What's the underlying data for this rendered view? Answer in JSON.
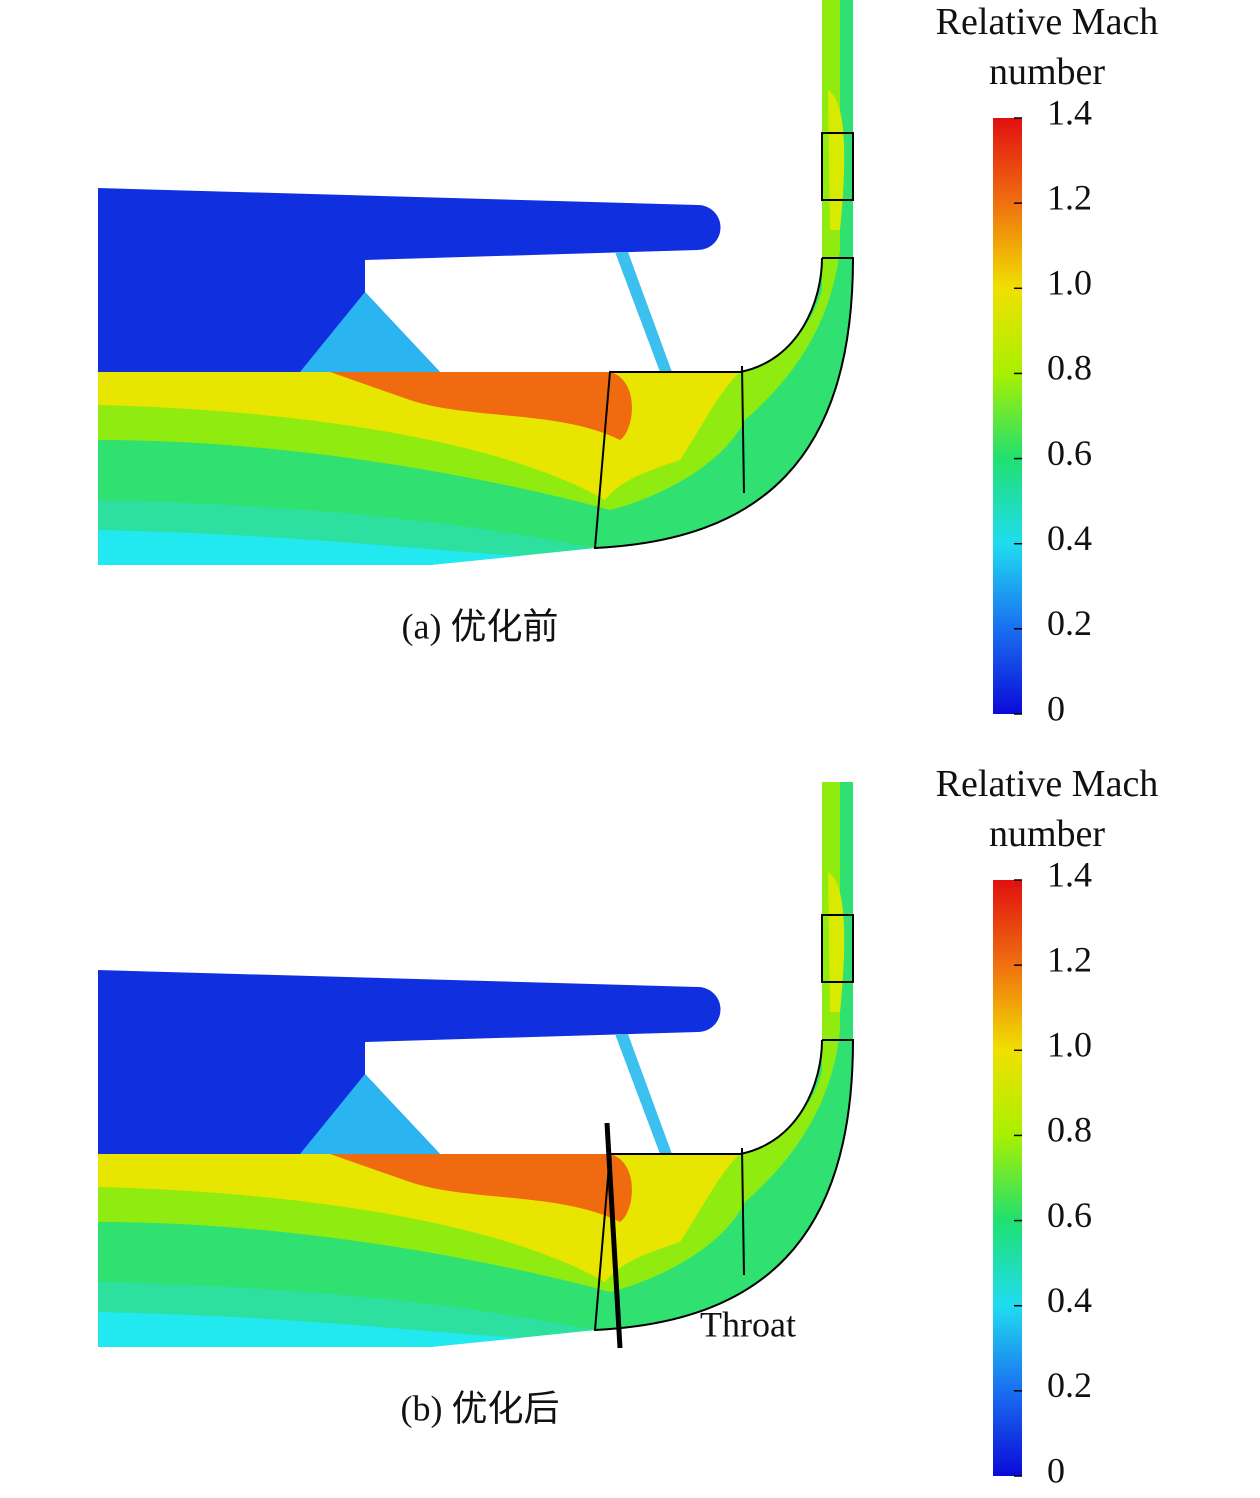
{
  "chart_data": [
    {
      "type": "colorbar",
      "title": "Relative Mach number",
      "caption": "(a) 优化前",
      "clim": [
        0,
        1.4
      ],
      "ticks": [
        0,
        0.2,
        0.4,
        0.6,
        0.8,
        {
          "value": 1,
          "label": "1.0"
        },
        1.2,
        1.4
      ],
      "colormap": [
        "#0a0ad8",
        "#1a6ff0",
        "#20dcf0",
        "#20e070",
        "#a8f000",
        "#f0e000",
        "#f07010",
        "#e01010"
      ]
    },
    {
      "type": "colorbar",
      "title": "Relative Mach number",
      "caption": "(b) 优化后",
      "annotation": "Throat",
      "clim": [
        0,
        1.4
      ],
      "ticks": [
        0,
        0.2,
        0.4,
        0.6,
        0.8,
        {
          "value": 1,
          "label": "1.0"
        },
        1.2,
        1.4
      ],
      "colormap": [
        "#0a0ad8",
        "#1a6ff0",
        "#20dcf0",
        "#20e070",
        "#a8f000",
        "#f0e000",
        "#f07010",
        "#e01010"
      ]
    }
  ]
}
